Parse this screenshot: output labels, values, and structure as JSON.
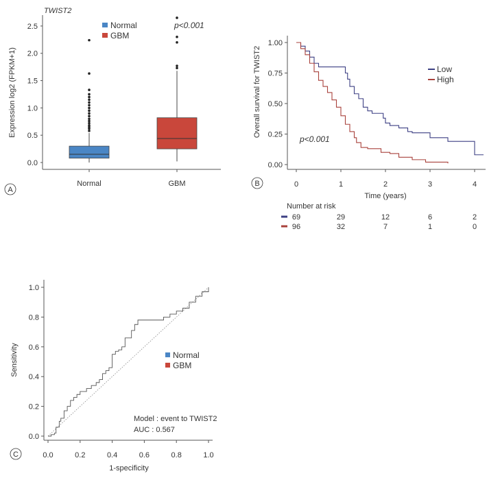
{
  "chart_data": [
    {
      "panel_label": "A",
      "type": "box",
      "title": "TWIST2",
      "ylabel": "Expression log2 (FPKM+1)",
      "ylim": [
        0,
        2.7
      ],
      "yticks": [
        "0.0",
        "0.5",
        "1.0",
        "1.5",
        "2.0",
        "2.5"
      ],
      "annotation": "p<0.001",
      "categories": [
        "Normal",
        "GBM"
      ],
      "legend": [
        "Normal",
        "GBM"
      ],
      "colors": [
        "#4a86c5",
        "#c9473b"
      ],
      "boxes": [
        {
          "name": "Normal",
          "q1": 0.08,
          "median": 0.15,
          "q3": 0.3,
          "whisker_low": 0.0,
          "whisker_high": 0.54,
          "outliers": [
            0.58,
            0.62,
            0.65,
            0.68,
            0.72,
            0.76,
            0.8,
            0.85,
            0.9,
            0.95,
            1.0,
            1.05,
            1.1,
            1.15,
            1.2,
            1.25,
            1.33,
            1.63,
            2.24
          ]
        },
        {
          "name": "GBM",
          "q1": 0.25,
          "median": 0.44,
          "q3": 0.82,
          "whisker_low": 0.02,
          "whisker_high": 1.68,
          "outliers": [
            1.73,
            1.77,
            2.2,
            2.3,
            2.65
          ]
        }
      ]
    },
    {
      "panel_label": "B",
      "type": "line",
      "ylabel": "Overall survival for TWIST2",
      "xlabel": "Time (years)",
      "xlim": [
        0,
        4.2
      ],
      "ylim": [
        0,
        1.0
      ],
      "xticks": [
        "0",
        "1",
        "2",
        "3",
        "4"
      ],
      "yticks": [
        "0.00",
        "0.25",
        "0.50",
        "0.75",
        "1.00"
      ],
      "annotation": "p<0.001",
      "legend_position": "top-right",
      "series": [
        {
          "name": "Low",
          "color": "#3c3f83",
          "points": [
            [
              0,
              1.0
            ],
            [
              0.1,
              0.97
            ],
            [
              0.2,
              0.93
            ],
            [
              0.3,
              0.88
            ],
            [
              0.4,
              0.83
            ],
            [
              0.5,
              0.8
            ],
            [
              0.6,
              0.8
            ],
            [
              1.0,
              0.8
            ],
            [
              1.1,
              0.75
            ],
            [
              1.15,
              0.7
            ],
            [
              1.2,
              0.64
            ],
            [
              1.3,
              0.58
            ],
            [
              1.4,
              0.54
            ],
            [
              1.5,
              0.47
            ],
            [
              1.6,
              0.44
            ],
            [
              1.7,
              0.42
            ],
            [
              1.9,
              0.42
            ],
            [
              1.95,
              0.38
            ],
            [
              2.0,
              0.34
            ],
            [
              2.1,
              0.32
            ],
            [
              2.3,
              0.3
            ],
            [
              2.5,
              0.27
            ],
            [
              2.6,
              0.26
            ],
            [
              2.9,
              0.26
            ],
            [
              3.0,
              0.22
            ],
            [
              3.4,
              0.19
            ],
            [
              3.9,
              0.19
            ],
            [
              4.0,
              0.08
            ],
            [
              4.2,
              0.08
            ]
          ]
        },
        {
          "name": "High",
          "color": "#a8413b",
          "points": [
            [
              0,
              1.0
            ],
            [
              0.1,
              0.95
            ],
            [
              0.2,
              0.9
            ],
            [
              0.3,
              0.83
            ],
            [
              0.4,
              0.76
            ],
            [
              0.5,
              0.69
            ],
            [
              0.6,
              0.64
            ],
            [
              0.7,
              0.59
            ],
            [
              0.8,
              0.53
            ],
            [
              0.9,
              0.47
            ],
            [
              1.0,
              0.4
            ],
            [
              1.1,
              0.33
            ],
            [
              1.2,
              0.27
            ],
            [
              1.3,
              0.22
            ],
            [
              1.35,
              0.18
            ],
            [
              1.45,
              0.14
            ],
            [
              1.6,
              0.13
            ],
            [
              1.9,
              0.1
            ],
            [
              2.1,
              0.09
            ],
            [
              2.3,
              0.06
            ],
            [
              2.6,
              0.04
            ],
            [
              2.9,
              0.02
            ],
            [
              3.4,
              0.01
            ]
          ]
        }
      ],
      "risk_table": {
        "title": "Number at risk",
        "rows": [
          {
            "color": "#3c3f83",
            "values": [
              "69",
              "29",
              "12",
              "6",
              "2"
            ]
          },
          {
            "color": "#a8413b",
            "values": [
              "96",
              "32",
              "7",
              "1",
              "0"
            ]
          }
        ]
      }
    },
    {
      "panel_label": "C",
      "type": "line",
      "xlabel": "1-specificity",
      "ylabel": "Sensitivity",
      "xlim": [
        0,
        1.0
      ],
      "ylim": [
        0,
        1.0
      ],
      "xticks": [
        "0.0",
        "0.2",
        "0.4",
        "0.6",
        "0.8",
        "1.0"
      ],
      "yticks": [
        "0.0",
        "0.2",
        "0.4",
        "0.6",
        "0.8",
        "1.0"
      ],
      "legend": [
        {
          "name": "Normal",
          "color": "#4a86c5"
        },
        {
          "name": "GBM",
          "color": "#c9473b"
        }
      ],
      "annotation": [
        "Model : event to TWIST2",
        "AUC : 0.567"
      ],
      "series": [
        {
          "name": "ROC",
          "color": "#555555",
          "points": [
            [
              0,
              0
            ],
            [
              0.02,
              0.01
            ],
            [
              0.04,
              0.02
            ],
            [
              0.05,
              0.06
            ],
            [
              0.07,
              0.1
            ],
            [
              0.08,
              0.12
            ],
            [
              0.1,
              0.17
            ],
            [
              0.12,
              0.2
            ],
            [
              0.14,
              0.24
            ],
            [
              0.16,
              0.26
            ],
            [
              0.18,
              0.28
            ],
            [
              0.2,
              0.3
            ],
            [
              0.24,
              0.32
            ],
            [
              0.27,
              0.34
            ],
            [
              0.3,
              0.36
            ],
            [
              0.32,
              0.38
            ],
            [
              0.34,
              0.42
            ],
            [
              0.36,
              0.44
            ],
            [
              0.38,
              0.46
            ],
            [
              0.4,
              0.55
            ],
            [
              0.42,
              0.57
            ],
            [
              0.44,
              0.58
            ],
            [
              0.46,
              0.6
            ],
            [
              0.48,
              0.66
            ],
            [
              0.5,
              0.66
            ],
            [
              0.52,
              0.71
            ],
            [
              0.54,
              0.75
            ],
            [
              0.56,
              0.78
            ],
            [
              0.6,
              0.78
            ],
            [
              0.7,
              0.78
            ],
            [
              0.72,
              0.8
            ],
            [
              0.76,
              0.82
            ],
            [
              0.8,
              0.84
            ],
            [
              0.84,
              0.86
            ],
            [
              0.88,
              0.9
            ],
            [
              0.9,
              0.9
            ],
            [
              0.92,
              0.94
            ],
            [
              0.96,
              0.97
            ],
            [
              1.0,
              1.0
            ]
          ]
        }
      ]
    }
  ]
}
